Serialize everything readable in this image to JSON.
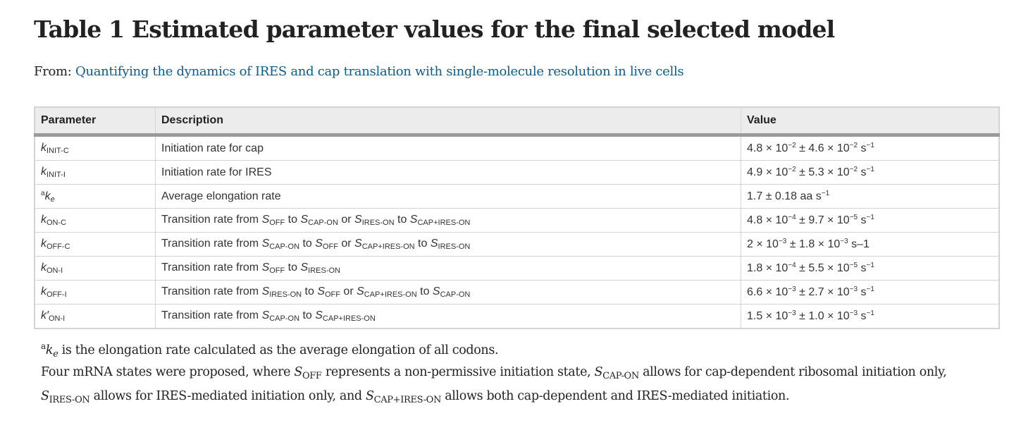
{
  "title": "Table 1 Estimated parameter values for the final selected model",
  "from": {
    "prefix": "From: ",
    "link_text": "Quantifying the dynamics of IRES and cap translation with single-molecule resolution in live cells"
  },
  "table": {
    "headers": [
      "Parameter",
      "Description",
      "Value"
    ],
    "rows": [
      {
        "parameter": "kINIT-C",
        "description": "Initiation rate for cap",
        "value": "4.8 × 10−2 ± 4.6 × 10−2 s−1"
      },
      {
        "parameter": "kINIT-I",
        "description": "Initiation rate for IRES",
        "value": "4.9 × 10−2 ± 5.3 × 10−2 s−1"
      },
      {
        "parameter": "ake",
        "description": "Average elongation rate",
        "value": "1.7 ± 0.18 aa s−1"
      },
      {
        "parameter": "kON-C",
        "description": "Transition rate from SOFF to SCAP-ON or SIRES-ON to SCAP+IRES-ON",
        "value": "4.8 × 10−4 ± 9.7 × 10−5 s−1"
      },
      {
        "parameter": "kOFF-C",
        "description": "Transition rate from SCAP-ON to SOFF or SCAP+IRES-ON to SIRES-ON",
        "value": "2 × 10−3 ± 1.8 × 10−3 s–1"
      },
      {
        "parameter": "kON-I",
        "description": "Transition rate from SOFF to SIRES-ON",
        "value": "1.8 × 10−4 ± 5.5 × 10−5 s−1"
      },
      {
        "parameter": "kOFF-I",
        "description": "Transition rate from SIRES-ON to SOFF or SCAP+IRES-ON to SCAP-ON",
        "value": "6.6 × 10−3 ± 2.7 × 10−3 s−1"
      },
      {
        "parameter": "k′ON-I",
        "description": "Transition rate from SCAP-ON to SCAP+IRES-ON",
        "value": "1.5 × 10−3 ± 1.0 × 10−3 s−1"
      }
    ]
  },
  "footnotes": [
    "ake is the elongation rate calculated as the average elongation of all codons.",
    "Four mRNA states were proposed, where SOFF represents a non-permissive initiation state, SCAP-ON allows for cap-dependent ribosomal initiation only,",
    "SIRES-ON allows for IRES-mediated initiation only, and SCAP+IRES-ON allows both cap-dependent and IRES-mediated initiation."
  ]
}
